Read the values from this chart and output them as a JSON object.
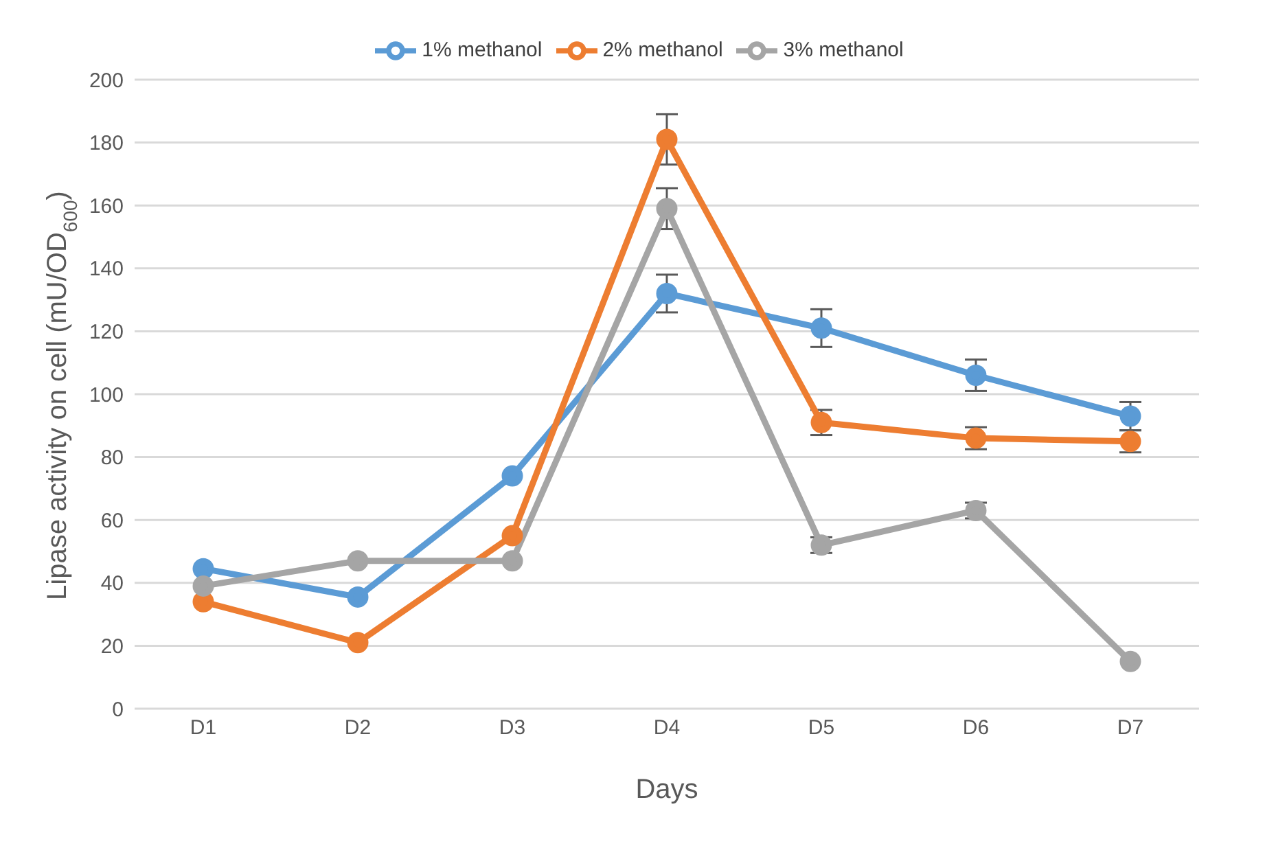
{
  "chart_data": {
    "type": "line",
    "xlabel": "Days",
    "ylabel": "Lipase activity on cell (mU/OD$_{600}$)",
    "categories": [
      "D1",
      "D2",
      "D3",
      "D4",
      "D5",
      "D6",
      "D7"
    ],
    "series": [
      {
        "name": "1% methanol",
        "color": "#5b9bd5",
        "values": [
          44.5,
          35.5,
          74,
          132,
          121,
          106,
          93
        ],
        "errors": [
          null,
          null,
          null,
          6,
          6,
          5,
          4.5
        ]
      },
      {
        "name": "2% methanol",
        "color": "#ed7d31",
        "values": [
          34,
          21,
          55,
          181,
          91,
          86,
          85
        ],
        "errors": [
          null,
          null,
          null,
          8,
          4,
          3.5,
          3.5
        ]
      },
      {
        "name": "3% methanol",
        "color": "#a5a5a5",
        "values": [
          39,
          47,
          47,
          159,
          52,
          63,
          15
        ],
        "errors": [
          null,
          null,
          null,
          6.5,
          2.5,
          2.5,
          null
        ]
      }
    ],
    "ylim": [
      0,
      200
    ],
    "yticks": [
      0,
      20,
      40,
      60,
      80,
      100,
      120,
      140,
      160,
      180,
      200
    ],
    "grid": "y",
    "legend": "top",
    "marker": "circle",
    "line_style": "solid"
  }
}
